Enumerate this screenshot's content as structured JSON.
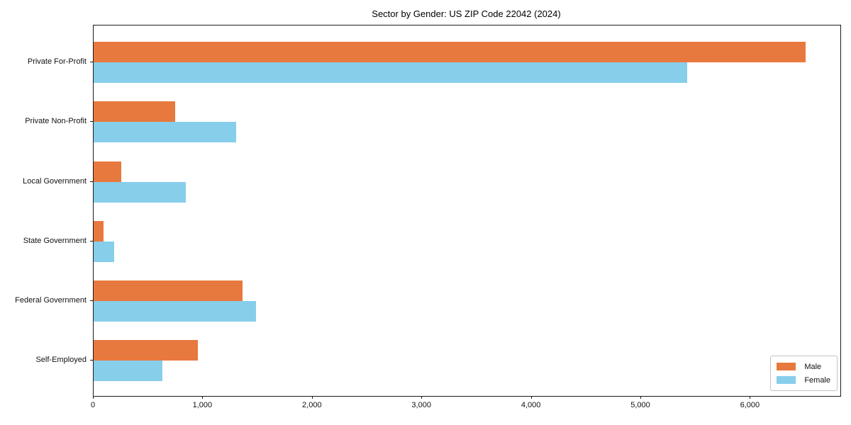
{
  "chart_data": {
    "type": "bar",
    "orientation": "horizontal",
    "title": "Sector by Gender: US ZIP Code 22042 (2024)",
    "categories": [
      "Private For-Profit",
      "Private Non-Profit",
      "Local Government",
      "State Government",
      "Federal Government",
      "Self-Employed"
    ],
    "series": [
      {
        "name": "Male",
        "color": "#e8793e",
        "values": [
          6500,
          745,
          255,
          90,
          1360,
          950
        ]
      },
      {
        "name": "Female",
        "color": "#87ceeb",
        "values": [
          5420,
          1300,
          840,
          190,
          1480,
          630
        ]
      }
    ],
    "xlim": [
      0,
      6820
    ],
    "x_ticks": [
      0,
      1000,
      2000,
      3000,
      4000,
      5000,
      6000
    ],
    "x_tick_labels": [
      "0",
      "1,000",
      "2,000",
      "3,000",
      "4,000",
      "5,000",
      "6,000"
    ],
    "xlabel": "",
    "ylabel": "",
    "grid": false,
    "legend_position": "lower right"
  }
}
